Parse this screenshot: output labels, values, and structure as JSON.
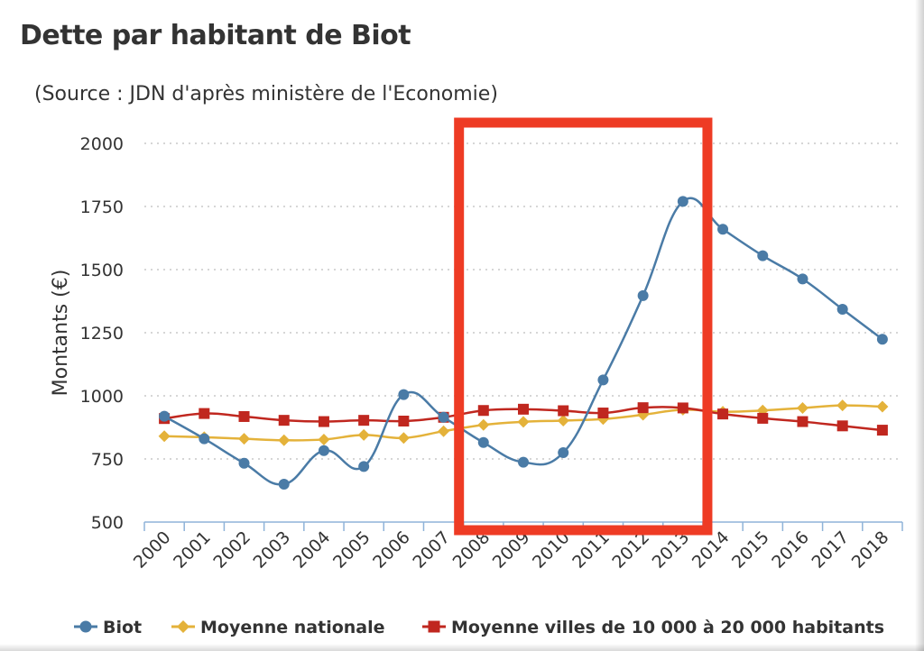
{
  "title": "Dette par habitant de Biot",
  "subtitle": "(Source : JDN d'après ministère de l'Economie)",
  "chart_data": {
    "type": "line",
    "title": "Dette par habitant de Biot",
    "subtitle": "(Source : JDN d'après ministère de l'Economie)",
    "xlabel": "",
    "ylabel": "Montants (€)",
    "ylim": [
      500,
      2000
    ],
    "yticks": [
      500,
      750,
      1000,
      1250,
      1500,
      1750,
      2000
    ],
    "grid": "horizontal dotted",
    "legend": "bottom",
    "categories": [
      "2000",
      "2001",
      "2002",
      "2003",
      "2004",
      "2005",
      "2006",
      "2007",
      "2008",
      "2009",
      "2010",
      "2011",
      "2012",
      "2013",
      "2014",
      "2015",
      "2016",
      "2017",
      "2018"
    ],
    "series": [
      {
        "name": "Biot",
        "color": "#4a7ba6",
        "marker": "circle",
        "values": [
          919,
          830,
          733,
          650,
          783,
          720,
          1005,
          915,
          815,
          737,
          775,
          1063,
          1397,
          1770,
          1660,
          1555,
          1463,
          1343,
          1224
        ]
      },
      {
        "name": "Moyenne nationale",
        "color": "#e4b23a",
        "marker": "diamond",
        "values": [
          840,
          836,
          830,
          824,
          827,
          845,
          833,
          860,
          885,
          897,
          902,
          908,
          925,
          945,
          937,
          942,
          952,
          962,
          957
        ]
      },
      {
        "name": "Moyenne villes de 10 000 à 20 000 habitants",
        "color": "#c0271f",
        "marker": "square",
        "values": [
          910,
          930,
          918,
          903,
          898,
          903,
          900,
          915,
          942,
          947,
          941,
          932,
          953,
          952,
          928,
          911,
          898,
          881,
          864
        ]
      }
    ]
  },
  "highlight": {
    "color": "#ee3b24",
    "from": "2008",
    "to": "2014"
  }
}
